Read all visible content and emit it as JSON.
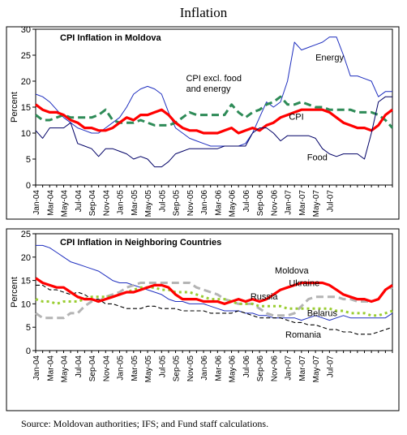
{
  "page_title": "Inflation",
  "source_note": "Source: Moldovan authorities; IFS; and Fund staff calculations.",
  "chart_data": [
    {
      "type": "line",
      "title": "CPI Inflation in Moldova",
      "ylabel": "Percent",
      "ylim": [
        0,
        30
      ],
      "yticks": [
        0,
        5,
        10,
        15,
        20,
        25,
        30
      ],
      "grid": false,
      "x_tick_labels": [
        "Jan-04",
        "Mar-04",
        "May-04",
        "Jul-04",
        "Sep-04",
        "Nov-04",
        "Jan-05",
        "Mar-05",
        "May-05",
        "Jul-05",
        "Sep-05",
        "Nov-05",
        "Jan-06",
        "Mar-06",
        "May-06",
        "Jul-06",
        "Sep-06",
        "Nov-06",
        "Jan-07",
        "Mar-07",
        "May-07",
        "Jul-07"
      ],
      "series": [
        {
          "name": "Energy",
          "color": "#1f2fbf",
          "style": "thin",
          "values": [
            17.5,
            17,
            16,
            14.5,
            13,
            12,
            11,
            10.5,
            10,
            10,
            11,
            12,
            13,
            15,
            17.5,
            18.5,
            19,
            18.5,
            17.5,
            14,
            11,
            10,
            9,
            8.5,
            8,
            7.5,
            7.5,
            7.5,
            7.5,
            7.5,
            8,
            10,
            13,
            16,
            15,
            16,
            20,
            27.5,
            26,
            26.5,
            27,
            27.5,
            28.5,
            28.5,
            25,
            21,
            21,
            20.5,
            20,
            17,
            18,
            18
          ]
        },
        {
          "name": "CPI excl. food and energy",
          "color": "#2e8b57",
          "style": "dashed",
          "values": [
            13.5,
            12.5,
            12.5,
            13,
            13.5,
            13,
            13,
            13,
            13,
            13.5,
            14.5,
            12.5,
            12,
            12,
            12,
            12.5,
            12,
            11.5,
            11.5,
            11.5,
            12,
            13,
            14,
            13.5,
            13.5,
            13.5,
            13.5,
            13.5,
            15.5,
            14,
            13,
            14,
            14.5,
            15.5,
            16,
            17,
            15.5,
            15.5,
            16,
            15.5,
            15,
            15,
            14.5,
            14.5,
            14.5,
            14.5,
            14,
            14,
            14,
            13.5,
            12.5,
            11
          ]
        },
        {
          "name": "CPI",
          "color": "#ff0000",
          "style": "thick",
          "values": [
            15.5,
            14.5,
            14,
            14,
            13.5,
            12.5,
            12,
            11,
            11,
            10.5,
            10.5,
            11,
            12,
            13,
            12.5,
            13.5,
            13.5,
            14,
            14.5,
            13.5,
            12,
            11,
            10.5,
            10.5,
            10,
            10,
            10,
            10.5,
            11,
            10,
            10.5,
            11,
            10.5,
            11.5,
            12,
            13,
            13.5,
            14,
            14.5,
            14.5,
            14.5,
            14.5,
            14,
            13,
            12,
            11.5,
            11,
            11,
            10.5,
            11.5,
            13.5,
            14.5
          ]
        },
        {
          "name": "Food",
          "color": "#000066",
          "style": "thin",
          "values": [
            10.5,
            9,
            11,
            11,
            11,
            12,
            8,
            7.5,
            7,
            5.5,
            7,
            7,
            6.5,
            6,
            5,
            5.5,
            5,
            3.5,
            3.5,
            4.5,
            6,
            6.5,
            7,
            7,
            7,
            7,
            7,
            7.5,
            7.5,
            7.5,
            7.5,
            10,
            11,
            11,
            10,
            8.5,
            9.5,
            9.5,
            9.5,
            9.5,
            9,
            7,
            6,
            5.5,
            6,
            6,
            6,
            5,
            10,
            16,
            17,
            17
          ]
        }
      ],
      "annotations": [
        {
          "text": "Energy",
          "x": 40,
          "y": 24
        },
        {
          "text": "CPI excl. food",
          "x": 21.5,
          "y": 20
        },
        {
          "text": "and energy",
          "x": 21.5,
          "y": 18
        },
        {
          "text": "CPI",
          "x": 36.2,
          "y": 12.6
        },
        {
          "text": "Food",
          "x": 38.8,
          "y": 4.8
        }
      ]
    },
    {
      "type": "line",
      "title": "CPI Inflation in Neighboring Countries",
      "ylabel": "Percent",
      "ylim": [
        0,
        25
      ],
      "yticks": [
        0,
        5,
        10,
        15,
        20,
        25
      ],
      "grid": false,
      "x_tick_labels": [
        "Jan-04",
        "Mar-04",
        "May-04",
        "Jul-04",
        "Sep-04",
        "Nov-04",
        "Jan-05",
        "Mar-05",
        "May-05",
        "Jul-05",
        "Sep-05",
        "Nov-05",
        "Jan-06",
        "Mar-06",
        "May-06",
        "Jul-06",
        "Sep-06",
        "Nov-06",
        "Jan-07",
        "Mar-07",
        "May-07",
        "Jul-07"
      ],
      "series": [
        {
          "name": "Belarus",
          "color": "#1f2fbf",
          "style": "thin",
          "values": [
            22.5,
            22.5,
            22,
            21,
            20,
            19,
            18.5,
            18,
            17.5,
            17,
            16,
            15,
            14.5,
            14.5,
            14,
            13.5,
            13,
            12.5,
            12,
            11,
            10.5,
            10.5,
            10,
            10,
            10,
            9.5,
            9,
            8.5,
            8.5,
            8.5,
            8,
            8,
            7.5,
            7.5,
            7,
            7,
            7,
            7,
            6.5,
            7,
            7.5,
            7,
            6.5,
            7,
            7.5,
            7,
            7,
            7,
            7,
            7,
            7,
            8
          ]
        },
        {
          "name": "Ukraine",
          "color": "#b4b4b4",
          "style": "dashed",
          "values": [
            8,
            7,
            7,
            7,
            7,
            8,
            8,
            9.5,
            10.5,
            10.5,
            11.5,
            12,
            12.5,
            13.5,
            14,
            14.5,
            14.5,
            14.5,
            14.5,
            14.5,
            14.5,
            14.5,
            14.5,
            13.5,
            13,
            12.5,
            12,
            11,
            10.5,
            10,
            10,
            10,
            9,
            8,
            7.5,
            7.5,
            7.5,
            8,
            9.5,
            11,
            11.5,
            11.5,
            11.5,
            11.5,
            11,
            11,
            10.5,
            10.5,
            10.5,
            11,
            13,
            13.5
          ]
        },
        {
          "name": "Russia",
          "color": "#9acd32",
          "style": "dotted",
          "values": [
            11,
            10.5,
            10.5,
            10,
            10.5,
            10.5,
            10.5,
            11,
            11.5,
            11.5,
            11.5,
            11.5,
            12,
            12.5,
            13,
            13.5,
            13.5,
            13.5,
            13,
            13,
            12.5,
            12.5,
            12.5,
            12,
            11.5,
            11,
            11,
            11,
            10.5,
            10,
            10,
            10,
            9.5,
            9.5,
            9.5,
            9.5,
            9,
            9,
            9,
            9,
            9,
            9,
            9,
            8.5,
            8.5,
            8,
            8,
            8,
            7.5,
            7.5,
            8,
            8.5
          ]
        },
        {
          "name": "Romania",
          "color": "#000000",
          "style": "dashed-thin",
          "values": [
            14,
            14,
            13,
            13,
            12.5,
            12,
            12.5,
            12,
            11,
            11,
            10,
            10,
            9.5,
            9,
            9,
            9,
            9.5,
            9.5,
            9,
            9,
            9,
            8.5,
            8.5,
            8.5,
            8.5,
            8,
            8,
            8,
            8,
            8.5,
            8,
            7.5,
            7,
            7,
            7,
            7,
            6.5,
            6,
            6,
            5.5,
            5.5,
            5,
            4.5,
            4.5,
            4,
            4,
            3.5,
            3.5,
            3.5,
            4,
            4.5,
            5
          ]
        },
        {
          "name": "Moldova",
          "color": "#ff0000",
          "style": "thick",
          "values": [
            15.5,
            14.5,
            14,
            13.5,
            13.5,
            12.5,
            11.5,
            11,
            11,
            10.5,
            11,
            11.5,
            12,
            12.5,
            12.5,
            13,
            13.5,
            14,
            14,
            13.5,
            12,
            11,
            11,
            11,
            10.5,
            10.5,
            10.5,
            10,
            10.5,
            11,
            10.5,
            11,
            10.5,
            11,
            12,
            13,
            13.5,
            14,
            14.5,
            14.5,
            14.5,
            14.5,
            14,
            13,
            12,
            11.5,
            11,
            11,
            10.5,
            11,
            13,
            14
          ]
        }
      ],
      "annotations": [
        {
          "text": "Moldova",
          "x": 34.2,
          "y": 16.5
        },
        {
          "text": "Ukraine",
          "x": 36.2,
          "y": 13.8
        },
        {
          "text": "Russia",
          "x": 30.7,
          "y": 10.9
        },
        {
          "text": "Belarus",
          "x": 38.8,
          "y": 7.4
        },
        {
          "text": "Romania",
          "x": 35.7,
          "y": 2.8
        }
      ]
    }
  ]
}
